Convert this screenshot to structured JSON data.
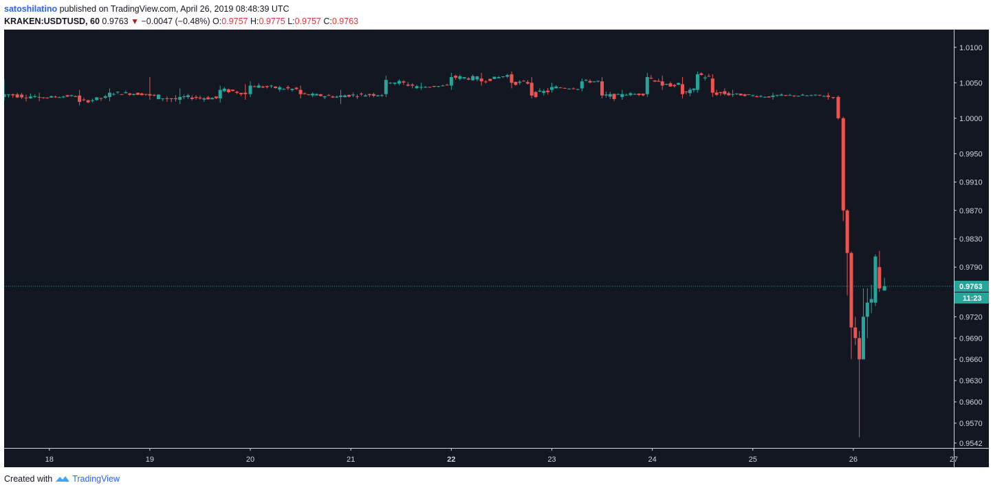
{
  "header": {
    "author": "satoshilatino",
    "published_text": "published on TradingView.com, April 26, 2019 08:48:39 UTC",
    "symbol": "KRAKEN:USDTUSD, 60",
    "last": "0.9763",
    "change": "−0.0047 (−0.48%)",
    "o_label": "O:",
    "o_val": "0.9757",
    "h_label": "H:",
    "h_val": "0.9775",
    "l_label": "L:",
    "l_val": "0.9757",
    "c_label": "C:",
    "c_val": "0.9763"
  },
  "footer": {
    "created_with": "Created with",
    "brand": "TradingView"
  },
  "colors": {
    "background": "#131722",
    "up": "#26a69a",
    "down": "#ef5350",
    "axis_text": "#d1d4dc",
    "price_line": "#26a69a"
  },
  "chart_data": {
    "type": "candlestick",
    "x_ticks": [
      "18",
      "19",
      "20",
      "21",
      "22",
      "23",
      "24",
      "25",
      "26",
      "27"
    ],
    "y_ticks": [
      "1.0100",
      "1.0050",
      "1.0000",
      "0.9950",
      "0.9910",
      "0.9870",
      "0.9830",
      "0.9790",
      "0.9720",
      "0.9690",
      "0.9660",
      "0.9630",
      "0.9600",
      "0.9570",
      "0.9542"
    ],
    "ylim": [
      0.9535,
      1.0125
    ],
    "xlim": [
      17.55,
      27.0
    ],
    "last_price_label": "0.9763",
    "countdown_label": "11:23",
    "last_price": 0.9763,
    "segments": [
      {
        "t": 17.55,
        "o": 1.003,
        "c": 1.0034,
        "h": 1.0055,
        "l": 1.0025
      },
      {
        "t": 17.9,
        "o": 1.003,
        "c": 1.0029,
        "h": 1.0036,
        "l": 1.0024
      },
      {
        "t": 18.3,
        "o": 1.0032,
        "c": 1.0023,
        "h": 1.004,
        "l": 1.0018
      },
      {
        "t": 18.6,
        "o": 1.003,
        "c": 1.0036,
        "h": 1.0042,
        "l": 1.0024
      },
      {
        "t": 19.0,
        "o": 1.0034,
        "c": 1.0032,
        "h": 1.0058,
        "l": 1.0026
      },
      {
        "t": 19.3,
        "o": 1.0026,
        "c": 1.003,
        "h": 1.0042,
        "l": 1.002
      },
      {
        "t": 19.7,
        "o": 1.0028,
        "c": 1.004,
        "h": 1.0046,
        "l": 1.0022
      },
      {
        "t": 19.95,
        "o": 1.0036,
        "c": 1.0034,
        "h": 1.0048,
        "l": 1.0026
      },
      {
        "t": 20.0,
        "o": 1.0034,
        "c": 1.0046,
        "h": 1.0052,
        "l": 1.003
      },
      {
        "t": 20.5,
        "o": 1.004,
        "c": 1.0034,
        "h": 1.0046,
        "l": 1.0028
      },
      {
        "t": 20.9,
        "o": 1.003,
        "c": 1.0032,
        "h": 1.004,
        "l": 1.002
      },
      {
        "t": 21.35,
        "o": 1.0034,
        "c": 1.0054,
        "h": 1.006,
        "l": 1.003
      },
      {
        "t": 21.7,
        "o": 1.0044,
        "c": 1.0044,
        "h": 1.005,
        "l": 1.004
      },
      {
        "t": 22.0,
        "o": 1.0046,
        "c": 1.0058,
        "h": 1.0064,
        "l": 1.004
      },
      {
        "t": 22.3,
        "o": 1.0056,
        "c": 1.0052,
        "h": 1.0064,
        "l": 1.0046
      },
      {
        "t": 22.6,
        "o": 1.0062,
        "c": 1.005,
        "h": 1.0066,
        "l": 1.0042
      },
      {
        "t": 22.8,
        "o": 1.005,
        "c": 1.0032,
        "h": 1.0058,
        "l": 1.0028
      },
      {
        "t": 23.0,
        "o": 1.004,
        "c": 1.0044,
        "h": 1.005,
        "l": 1.0036
      },
      {
        "t": 23.3,
        "o": 1.0042,
        "c": 1.0052,
        "h": 1.0056,
        "l": 1.0038
      },
      {
        "t": 23.5,
        "o": 1.0052,
        "c": 1.0032,
        "h": 1.0058,
        "l": 1.0028
      },
      {
        "t": 23.7,
        "o": 1.003,
        "c": 1.0034,
        "h": 1.004,
        "l": 1.0026
      },
      {
        "t": 23.95,
        "o": 1.0034,
        "c": 1.0058,
        "h": 1.0064,
        "l": 1.003
      },
      {
        "t": 24.1,
        "o": 1.0052,
        "c": 1.0046,
        "h": 1.006,
        "l": 1.004
      },
      {
        "t": 24.3,
        "o": 1.0048,
        "c": 1.0034,
        "h": 1.0058,
        "l": 1.0028
      },
      {
        "t": 24.45,
        "o": 1.004,
        "c": 1.0062,
        "h": 1.0066,
        "l": 1.0036
      },
      {
        "t": 24.6,
        "o": 1.0056,
        "c": 1.0036,
        "h": 1.0062,
        "l": 1.003
      },
      {
        "t": 24.8,
        "o": 1.0034,
        "c": 1.0034,
        "h": 1.004,
        "l": 1.003
      },
      {
        "t": 25.2,
        "o": 1.003,
        "c": 1.0032,
        "h": 1.0036,
        "l": 1.0026
      },
      {
        "t": 25.75,
        "o": 1.0032,
        "c": 1.003,
        "h": 1.0036,
        "l": 1.0026
      },
      {
        "t": 25.85,
        "o": 1.003,
        "c": 1.0,
        "h": 1.0032,
        "l": 0.9998
      },
      {
        "t": 25.9,
        "o": 1.0,
        "c": 0.987,
        "h": 1.0002,
        "l": 0.9855
      },
      {
        "t": 25.94,
        "o": 0.987,
        "c": 0.981,
        "h": 0.9872,
        "l": 0.975
      },
      {
        "t": 25.98,
        "o": 0.981,
        "c": 0.9705,
        "h": 0.9812,
        "l": 0.966
      },
      {
        "t": 26.02,
        "o": 0.9705,
        "c": 0.969,
        "h": 0.972,
        "l": 0.968
      },
      {
        "t": 26.06,
        "o": 0.969,
        "c": 0.966,
        "h": 0.97,
        "l": 0.955
      },
      {
        "t": 26.1,
        "o": 0.966,
        "c": 0.972,
        "h": 0.976,
        "l": 0.966
      },
      {
        "t": 26.14,
        "o": 0.972,
        "c": 0.974,
        "h": 0.976,
        "l": 0.969
      },
      {
        "t": 26.18,
        "o": 0.974,
        "c": 0.9745,
        "h": 0.9765,
        "l": 0.9725
      },
      {
        "t": 26.22,
        "o": 0.974,
        "c": 0.9805,
        "h": 0.9808,
        "l": 0.9735
      },
      {
        "t": 26.26,
        "o": 0.979,
        "c": 0.976,
        "h": 0.9813,
        "l": 0.9755
      },
      {
        "t": 26.31,
        "o": 0.9757,
        "c": 0.9763,
        "h": 0.9775,
        "l": 0.9757
      }
    ]
  }
}
